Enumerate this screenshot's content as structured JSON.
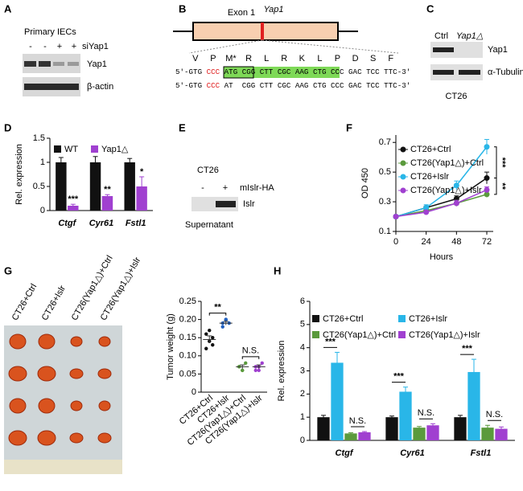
{
  "panels": {
    "labels": [
      "A",
      "B",
      "C",
      "D",
      "E",
      "F",
      "G",
      "H"
    ],
    "a": {
      "title": "Primary IECs",
      "treatment": "siYap1",
      "signs": [
        "-",
        "-",
        "+",
        "+"
      ],
      "blots": [
        "Yap1",
        "β-actin"
      ]
    },
    "b": {
      "gene": "Yap1",
      "exon": "Exon 1",
      "aa": [
        "V",
        "P",
        "M*",
        "R",
        "L",
        "R",
        "K",
        "L",
        "P",
        "D",
        "S",
        "F"
      ],
      "aa_color": "#8a3fc0",
      "seq1": [
        {
          "text": "5'-GTG ",
          "color": "#000000"
        },
        {
          "text": "CCC",
          "color": "#e02020"
        },
        {
          "text": " ATG CGG CTT CGC AAG CTG CCC GAC TCC TTC-3'",
          "color": "#000000"
        }
      ],
      "seq2": [
        {
          "text": "5'-GTG ",
          "color": "#000000"
        },
        {
          "text": "CCC",
          "color": "#e02020"
        },
        {
          "text": " AT  CGG CTT CGC AAG CTG CCC GAC TCC TTC-3'",
          "color": "#000000"
        }
      ]
    },
    "c": {
      "lanes": [
        "Ctrl",
        "Yap1△"
      ],
      "blots": [
        "Yap1",
        "α-Tubulin"
      ],
      "cell": "CT26"
    },
    "e": {
      "cell": "CT26",
      "signs": [
        "-",
        "+"
      ],
      "treatment": "mIslr-HA",
      "blot": "Islr",
      "sample": "Supernatant"
    }
  },
  "chart_data": [
    {
      "type": "bar",
      "y_label": "Rel. expression",
      "categories": [
        "Ctgf",
        "Cyr61",
        "Fstl1"
      ],
      "series": [
        {
          "name": "WT",
          "color": "#111111",
          "values": [
            1.0,
            1.0,
            1.0
          ],
          "errors": [
            0.1,
            0.12,
            0.08
          ]
        },
        {
          "name": "Yap1△",
          "color": "#a040d0",
          "values": [
            0.1,
            0.3,
            0.5
          ],
          "errors": [
            0.03,
            0.03,
            0.2
          ]
        }
      ],
      "significance": [
        "***",
        "**",
        "*"
      ],
      "ylim": [
        0,
        1.5
      ],
      "yticks": [
        0,
        0.5,
        1,
        1.5
      ]
    },
    {
      "type": "line",
      "y_label": "OD 450",
      "x_label": "Hours",
      "x": [
        0,
        24,
        48,
        72
      ],
      "series": [
        {
          "name": "CT26+Ctrl",
          "color": "#111111",
          "values": [
            0.2,
            0.26,
            0.32,
            0.46
          ],
          "errors": [
            0.01,
            0.01,
            0.02,
            0.04
          ]
        },
        {
          "name": "CT26(Yap1△)+Ctrl",
          "color": "#5a9a3c",
          "values": [
            0.2,
            0.24,
            0.29,
            0.35
          ],
          "errors": [
            0.01,
            0.01,
            0.02,
            0.02
          ]
        },
        {
          "name": "CT26+Islr",
          "color": "#29b6e8",
          "values": [
            0.2,
            0.26,
            0.41,
            0.67
          ],
          "errors": [
            0.01,
            0.02,
            0.03,
            0.05
          ]
        },
        {
          "name": "CT26(Yap1△)+Islr",
          "color": "#a040d0",
          "values": [
            0.2,
            0.23,
            0.29,
            0.38
          ],
          "errors": [
            0.01,
            0.01,
            0.02,
            0.02
          ]
        }
      ],
      "significance": [
        "***",
        "**"
      ],
      "xlim": [
        0,
        72
      ],
      "xticks": [
        0,
        24,
        48,
        72
      ],
      "ylim": [
        0.1,
        0.75
      ],
      "yticks": [
        0.1,
        0.3,
        0.5,
        0.7
      ]
    },
    {
      "type": "scatter",
      "y_label": "Tumor weight (g)",
      "categories": [
        "CT26+Ctrl",
        "CT26+Islr",
        "CT26(Yap1△)+Ctrl",
        "CT26(Yap1△)+Islr"
      ],
      "colors": [
        "#111111",
        "#2060c0",
        "#5a9a3c",
        "#a040d0"
      ],
      "points": [
        [
          0.16,
          0.14,
          0.15,
          0.12,
          0.17,
          0.13
        ],
        [
          0.19,
          0.2,
          0.19,
          0.18,
          0.2
        ],
        [
          0.07,
          0.06,
          0.08,
          0.07,
          0.06
        ],
        [
          0.07,
          0.06,
          0.08,
          0.06,
          0.07
        ]
      ],
      "values": [
        0.145,
        0.19,
        0.07,
        0.07
      ],
      "errors": [
        0.01,
        0.005,
        0.005,
        0.005
      ],
      "significance": [
        "**",
        "N.S."
      ],
      "ylim": [
        0,
        0.25
      ],
      "yticks": [
        0,
        0.05,
        {
          "value": 0.1,
          "label": "0.10"
        },
        0.15,
        {
          "value": 0.2,
          "label": "0.20"
        },
        0.25
      ]
    },
    {
      "type": "bar",
      "y_label": "Rel. expression",
      "categories": [
        "Ctgf",
        "Cyr61",
        "Fstl1"
      ],
      "series": [
        {
          "name": "CT26+Ctrl",
          "color": "#111111",
          "values": [
            1,
            1,
            1
          ],
          "errors": [
            0.08,
            0.05,
            0.08
          ]
        },
        {
          "name": "CT26+Islr",
          "color": "#29b6e8",
          "values": [
            3.35,
            2.1,
            2.95
          ],
          "errors": [
            0.45,
            0.2,
            0.55
          ]
        },
        {
          "name": "CT26(Yap1△)+Ctrl",
          "color": "#5a9a3c",
          "values": [
            0.3,
            0.55,
            0.55
          ],
          "errors": [
            0.03,
            0.05,
            0.1
          ]
        },
        {
          "name": "CT26(Yap1△)+Islr",
          "color": "#a040d0",
          "values": [
            0.35,
            0.65,
            0.5
          ],
          "errors": [
            0.03,
            0.07,
            0.08
          ]
        }
      ],
      "significance": [
        "***",
        "***",
        "***"
      ],
      "ns_labels": [
        "N.S.",
        "N.S.",
        "N.S."
      ],
      "ylim": [
        0,
        6
      ],
      "yticks": [
        0,
        1,
        2,
        3,
        4,
        5,
        6
      ]
    }
  ]
}
